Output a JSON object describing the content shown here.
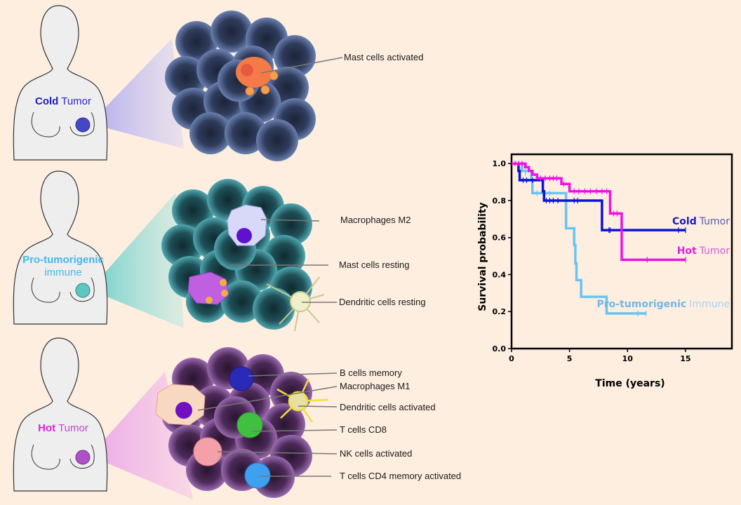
{
  "panels": [
    {
      "id": "cold",
      "label_bold": "Cold",
      "label_rest": "Tumor",
      "color": "#1a1ac8",
      "cone_color": "#b8b4f0",
      "cluster_color": "#3d4f78",
      "callouts": [
        "Mast cells activated"
      ]
    },
    {
      "id": "pro",
      "label_bold": "Pro-tumorigenic",
      "label_rest": "immune",
      "color": "#4fc3f0",
      "cone_color": "#7fd8d4",
      "cluster_color": "#2c6e78",
      "callouts": [
        "Macrophages M2",
        "Mast cells resting",
        "Dendritic cells resting"
      ]
    },
    {
      "id": "hot",
      "label_bold": "Hot",
      "label_rest": "Tumor",
      "color": "#e020e0",
      "cone_color": "#f4b0e4",
      "cluster_color": "#6a3a78",
      "callouts": [
        "B cells memory",
        "Macrophages M1",
        "Dendritic cells activated",
        "T cells CD8",
        "NK cells activated",
        "T cells CD4 memory  activated"
      ]
    }
  ],
  "chart_data": {
    "type": "line",
    "subtype": "kaplan-meier",
    "title": "",
    "xlabel": "Time (years)",
    "ylabel": "Survival probability",
    "xlim": [
      0,
      19
    ],
    "ylim": [
      0,
      1.05
    ],
    "xticks": [
      "0",
      "5",
      "10",
      "15"
    ],
    "yticks": [
      "0.0",
      "0.2",
      "0.4",
      "0.6",
      "0.8",
      "1.0"
    ],
    "grid": false,
    "series": [
      {
        "name": "Cold Tumor",
        "label_bold": "Cold",
        "label_rest": "Tumor",
        "color": "#0a14d8",
        "label_color": "#1a1ac8",
        "label_rest_color": "#5a5ab0",
        "steps": [
          [
            0,
            1.0
          ],
          [
            0.6,
            0.96
          ],
          [
            0.7,
            0.91
          ],
          [
            2.6,
            0.91
          ],
          [
            2.7,
            0.85
          ],
          [
            2.8,
            0.8
          ],
          [
            7.8,
            0.8
          ],
          [
            7.8,
            0.64
          ],
          [
            15,
            0.64
          ]
        ],
        "censors": [
          [
            1.0,
            0.91
          ],
          [
            1.3,
            0.91
          ],
          [
            1.8,
            0.91
          ],
          [
            3.0,
            0.8
          ],
          [
            3.3,
            0.8
          ],
          [
            3.6,
            0.8
          ],
          [
            4.0,
            0.8
          ],
          [
            5.4,
            0.8
          ],
          [
            5.7,
            0.8
          ],
          [
            8.4,
            0.64
          ],
          [
            8.5,
            0.64
          ],
          [
            14.4,
            0.64
          ],
          [
            15.0,
            0.64
          ]
        ]
      },
      {
        "name": "Hot Tumor",
        "label_bold": "Hot",
        "label_rest": "Tumor",
        "color": "#f010e8",
        "label_color": "#e020e0",
        "label_rest_color": "#d060d0",
        "steps": [
          [
            0,
            1.0
          ],
          [
            1.2,
            0.98
          ],
          [
            1.5,
            0.96
          ],
          [
            1.8,
            0.94
          ],
          [
            2.2,
            0.92
          ],
          [
            4.2,
            0.92
          ],
          [
            4.3,
            0.89
          ],
          [
            4.9,
            0.89
          ],
          [
            5.0,
            0.85
          ],
          [
            8.4,
            0.85
          ],
          [
            8.5,
            0.73
          ],
          [
            9.5,
            0.73
          ],
          [
            9.5,
            0.48
          ],
          [
            15,
            0.48
          ]
        ],
        "censors": [
          [
            0.3,
            1.0
          ],
          [
            0.6,
            1.0
          ],
          [
            0.9,
            1.0
          ],
          [
            1.1,
            0.99
          ],
          [
            2.5,
            0.92
          ],
          [
            2.9,
            0.92
          ],
          [
            3.3,
            0.92
          ],
          [
            3.6,
            0.92
          ],
          [
            3.9,
            0.92
          ],
          [
            4.5,
            0.89
          ],
          [
            5.4,
            0.85
          ],
          [
            5.8,
            0.85
          ],
          [
            6.3,
            0.85
          ],
          [
            6.8,
            0.85
          ],
          [
            7.3,
            0.85
          ],
          [
            7.8,
            0.85
          ],
          [
            8.2,
            0.85
          ],
          [
            8.8,
            0.73
          ],
          [
            9.1,
            0.73
          ],
          [
            11.7,
            0.48
          ],
          [
            15.0,
            0.48
          ]
        ]
      },
      {
        "name": "Pro-tumorigenic Immune",
        "label_bold": "Pro-tumorigenic",
        "label_rest": "Immune",
        "color": "#68c4f4",
        "label_color": "#70b8e8",
        "label_rest_color": "#a8d4f0",
        "steps": [
          [
            0,
            1.0
          ],
          [
            0.9,
            0.96
          ],
          [
            1.7,
            0.91
          ],
          [
            1.8,
            0.84
          ],
          [
            4.6,
            0.84
          ],
          [
            4.7,
            0.65
          ],
          [
            5.3,
            0.65
          ],
          [
            5.4,
            0.56
          ],
          [
            5.5,
            0.46
          ],
          [
            5.6,
            0.37
          ],
          [
            5.9,
            0.37
          ],
          [
            6.0,
            0.28
          ],
          [
            8.1,
            0.28
          ],
          [
            8.2,
            0.19
          ],
          [
            11.6,
            0.19
          ]
        ],
        "censors": [
          [
            1.2,
            0.95
          ],
          [
            2.2,
            0.84
          ],
          [
            2.9,
            0.84
          ],
          [
            3.3,
            0.84
          ],
          [
            10.9,
            0.19
          ],
          [
            11.6,
            0.19
          ]
        ]
      }
    ]
  }
}
